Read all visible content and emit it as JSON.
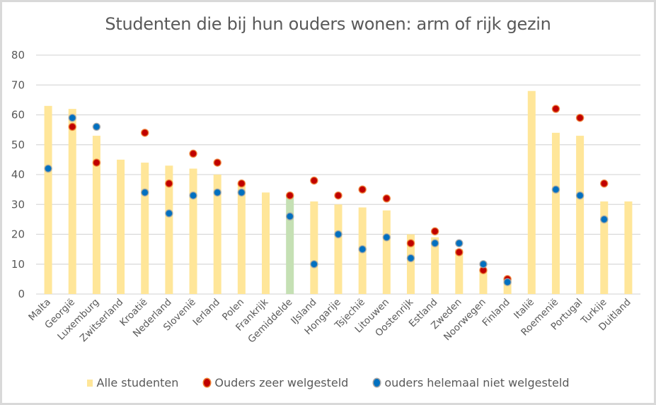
{
  "chart_data": {
    "type": "bar",
    "title": "Studenten die bij hun ouders wonen: arm of rijk gezin",
    "xlabel": "",
    "ylabel": "",
    "ylim": [
      0,
      80
    ],
    "yticks": [
      0,
      10,
      20,
      30,
      40,
      50,
      60,
      70,
      80
    ],
    "grid": true,
    "legend_position": "bottom",
    "categories": [
      "Malta",
      "Georgië",
      "Luxemburg",
      "Zwitserland",
      "Kroatië",
      "Nederland",
      "Slovenië",
      "Ierland",
      "Polen",
      "Frankrijk",
      "Gemiddelde",
      "IJsland",
      "Hongarije",
      "Tsjechië",
      "Litouwen",
      "Oostenrijk",
      "Estland",
      "Zweden",
      "Noorwegen",
      "Finland",
      "Italië",
      "Roemenië",
      "Portugal",
      "Turkije",
      "Duitland"
    ],
    "highlight_category": "Gemiddelde",
    "series": [
      {
        "name": "Alle studenten",
        "kind": "bar",
        "color": "#ffe699",
        "highlight_color": "#c5e0b4",
        "values": [
          63,
          62,
          53,
          45,
          44,
          43,
          42,
          40,
          37,
          34,
          33,
          31,
          30,
          29,
          28,
          20,
          19,
          15,
          8,
          5,
          68,
          54,
          53,
          31,
          31
        ]
      },
      {
        "name": "Ouders zeer welgesteld",
        "kind": "marker",
        "color": "#c00000",
        "edge_color": "#ed7d31",
        "values": [
          null,
          56,
          44,
          null,
          54,
          37,
          47,
          44,
          37,
          null,
          33,
          38,
          33,
          35,
          32,
          17,
          21,
          14,
          8,
          5,
          null,
          62,
          59,
          37,
          null
        ]
      },
      {
        "name": "ouders helemaal niet welgesteld",
        "kind": "marker",
        "color": "#0070c0",
        "edge_color": "#a5a5a5",
        "values": [
          42,
          59,
          56,
          null,
          34,
          27,
          33,
          34,
          34,
          null,
          26,
          10,
          20,
          15,
          19,
          12,
          17,
          17,
          10,
          4,
          null,
          35,
          33,
          25,
          null
        ]
      }
    ]
  }
}
